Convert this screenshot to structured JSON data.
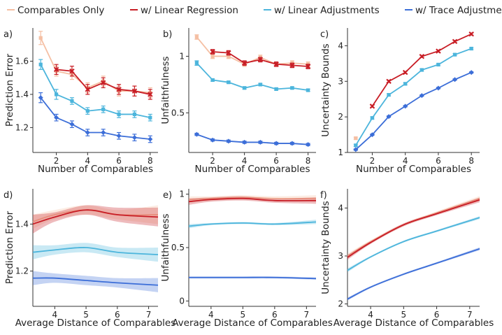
{
  "legend": {
    "items": [
      {
        "label": "Comparables Only",
        "color": "#f5bfa3"
      },
      {
        "label": "w/ Linear Regression",
        "color": "#c81d25"
      },
      {
        "label": "w/ Linear Adjustments",
        "color": "#4cb5dc"
      },
      {
        "label": "w/ Trace Adjustment",
        "color": "#3c6ed8"
      }
    ]
  },
  "chart_data": [
    {
      "panel": "a)",
      "type": "line",
      "xlabel": "Number of Comparables",
      "ylabel": "Prediction Error",
      "xlim": [
        0.5,
        8.5
      ],
      "ylim": [
        1.05,
        1.8
      ],
      "xticks": [
        2,
        4,
        6,
        8
      ],
      "yticks": [
        1.2,
        1.4,
        1.6
      ],
      "series": [
        {
          "name": "Comparables Only",
          "x": [
            1,
            2,
            3,
            4,
            5,
            6,
            7,
            8
          ],
          "y": [
            1.74,
            1.54,
            1.52,
            1.44,
            1.48,
            1.42,
            1.42,
            1.41
          ],
          "err": [
            0.04,
            0.03,
            0.03,
            0.03,
            0.03,
            0.03,
            0.03,
            0.03
          ],
          "marker": "square"
        },
        {
          "name": "w/ Linear Regression",
          "x": [
            2,
            3,
            4,
            5,
            6,
            7,
            8
          ],
          "y": [
            1.55,
            1.54,
            1.43,
            1.47,
            1.43,
            1.42,
            1.4
          ],
          "err": [
            0.03,
            0.03,
            0.03,
            0.03,
            0.03,
            0.03,
            0.03
          ],
          "marker": "x"
        },
        {
          "name": "w/ Linear Adjustments",
          "x": [
            1,
            2,
            3,
            4,
            5,
            6,
            7,
            8
          ],
          "y": [
            1.58,
            1.4,
            1.36,
            1.3,
            1.31,
            1.28,
            1.28,
            1.26
          ],
          "err": [
            0.03,
            0.03,
            0.02,
            0.02,
            0.02,
            0.02,
            0.02,
            0.02
          ],
          "marker": "square"
        },
        {
          "name": "w/ Trace Adjustment",
          "x": [
            1,
            2,
            3,
            4,
            5,
            6,
            7,
            8
          ],
          "y": [
            1.38,
            1.26,
            1.22,
            1.17,
            1.17,
            1.15,
            1.14,
            1.13
          ],
          "err": [
            0.03,
            0.02,
            0.02,
            0.02,
            0.02,
            0.02,
            0.02,
            0.02
          ],
          "marker": "diamond"
        }
      ]
    },
    {
      "panel": "b)",
      "type": "line",
      "xlabel": "Number of Comparables",
      "ylabel": "Unfaithfulness",
      "xlim": [
        0.5,
        8.5
      ],
      "ylim": [
        0.15,
        1.25
      ],
      "xticks": [
        2,
        4,
        6,
        8
      ],
      "yticks": [
        0.5,
        1.0
      ],
      "series": [
        {
          "name": "Comparables Only",
          "x": [
            1,
            2,
            3,
            4,
            5,
            6,
            7,
            8
          ],
          "y": [
            1.17,
            1.0,
            1.0,
            0.93,
            0.99,
            0.93,
            0.94,
            0.93
          ],
          "err": [
            0.02,
            0.02,
            0.02,
            0.02,
            0.02,
            0.02,
            0.02,
            0.02
          ],
          "marker": "square"
        },
        {
          "name": "w/ Linear Regression",
          "x": [
            2,
            3,
            4,
            5,
            6,
            7,
            8
          ],
          "y": [
            1.04,
            1.03,
            0.94,
            0.97,
            0.93,
            0.92,
            0.91
          ],
          "err": [
            0.02,
            0.02,
            0.02,
            0.02,
            0.02,
            0.02,
            0.02
          ],
          "marker": "x"
        },
        {
          "name": "w/ Linear Adjustments",
          "x": [
            1,
            2,
            3,
            4,
            5,
            6,
            7,
            8
          ],
          "y": [
            0.94,
            0.79,
            0.77,
            0.72,
            0.75,
            0.71,
            0.72,
            0.7
          ],
          "err": [
            0.02,
            0.01,
            0.01,
            0.01,
            0.01,
            0.01,
            0.01,
            0.01
          ],
          "marker": "square"
        },
        {
          "name": "w/ Trace Adjustment",
          "x": [
            1,
            2,
            3,
            4,
            5,
            6,
            7,
            8
          ],
          "y": [
            0.31,
            0.26,
            0.25,
            0.24,
            0.24,
            0.23,
            0.23,
            0.22
          ],
          "err": [
            0.01,
            0.01,
            0.01,
            0.01,
            0.01,
            0.01,
            0.01,
            0.01
          ],
          "marker": "diamond"
        }
      ]
    },
    {
      "panel": "c)",
      "type": "line",
      "xlabel": "Number of Comparables",
      "ylabel": "Uncertainty Bounds",
      "xlim": [
        0.5,
        8.5
      ],
      "ylim": [
        1.0,
        4.5
      ],
      "xticks": [
        2,
        4,
        6,
        8
      ],
      "yticks": [
        1,
        2,
        3,
        4
      ],
      "series": [
        {
          "name": "Comparables Only",
          "x": [
            1
          ],
          "y": [
            1.4
          ],
          "err": [
            0.03
          ],
          "marker": "square"
        },
        {
          "name": "w/ Linear Regression",
          "x": [
            2,
            3,
            4,
            5,
            6,
            7,
            8
          ],
          "y": [
            2.3,
            3.0,
            3.25,
            3.7,
            3.85,
            4.12,
            4.33
          ],
          "err": [
            0.03,
            0.03,
            0.03,
            0.03,
            0.03,
            0.03,
            0.03
          ],
          "marker": "x"
        },
        {
          "name": "w/ Linear Adjustments",
          "x": [
            1,
            2,
            3,
            4,
            5,
            6,
            7,
            8
          ],
          "y": [
            1.2,
            1.97,
            2.62,
            2.93,
            3.32,
            3.47,
            3.75,
            3.92
          ],
          "err": [
            0.03,
            0.03,
            0.03,
            0.03,
            0.03,
            0.03,
            0.03,
            0.03
          ],
          "marker": "square"
        },
        {
          "name": "w/ Trace Adjustment",
          "x": [
            1,
            2,
            3,
            4,
            5,
            6,
            7,
            8
          ],
          "y": [
            1.08,
            1.5,
            2.01,
            2.3,
            2.6,
            2.81,
            3.05,
            3.25
          ],
          "err": [
            0.02,
            0.02,
            0.02,
            0.02,
            0.02,
            0.02,
            0.02,
            0.02
          ],
          "marker": "diamond"
        }
      ]
    },
    {
      "panel": "d)",
      "type": "area",
      "xlabel": "Average Distance of Comparables",
      "ylabel": "Prediction Error",
      "xlim": [
        3.3,
        7.3
      ],
      "ylim": [
        1.05,
        1.55
      ],
      "xticks": [
        4,
        5,
        6,
        7
      ],
      "yticks": [
        1.2,
        1.4
      ],
      "series": [
        {
          "name": "Comparables Only",
          "x": [
            3.3,
            4.0,
            5.0,
            6.0,
            7.3
          ],
          "y": [
            1.41,
            1.44,
            1.46,
            1.44,
            1.44
          ],
          "band": [
            0.03,
            0.02,
            0.02,
            0.02,
            0.04
          ]
        },
        {
          "name": "w/ Linear Regression",
          "x": [
            3.3,
            4.0,
            5.0,
            6.0,
            7.3
          ],
          "y": [
            1.4,
            1.43,
            1.46,
            1.44,
            1.43
          ],
          "band": [
            0.04,
            0.02,
            0.02,
            0.03,
            0.04
          ]
        },
        {
          "name": "w/ Linear Adjustments",
          "x": [
            3.3,
            4.0,
            5.0,
            6.0,
            7.3
          ],
          "y": [
            1.28,
            1.29,
            1.3,
            1.28,
            1.27
          ],
          "band": [
            0.03,
            0.02,
            0.02,
            0.02,
            0.03
          ]
        },
        {
          "name": "w/ Trace Adjustment",
          "x": [
            3.3,
            4.0,
            5.0,
            6.0,
            7.3
          ],
          "y": [
            1.17,
            1.17,
            1.16,
            1.15,
            1.14
          ],
          "band": [
            0.03,
            0.02,
            0.02,
            0.02,
            0.03
          ]
        }
      ]
    },
    {
      "panel": "e)",
      "type": "area",
      "xlabel": "Average Distance of Comparables",
      "ylabel": "Unfaithfulness",
      "xlim": [
        3.3,
        7.3
      ],
      "ylim": [
        -0.05,
        1.05
      ],
      "xticks": [
        4,
        5,
        6,
        7
      ],
      "yticks": [
        0,
        0.5,
        1
      ],
      "series": [
        {
          "name": "Comparables Only",
          "x": [
            3.3,
            4.0,
            5.0,
            6.0,
            7.3
          ],
          "y": [
            0.95,
            0.96,
            0.97,
            0.96,
            0.96
          ],
          "band": [
            0.03,
            0.02,
            0.02,
            0.02,
            0.03
          ]
        },
        {
          "name": "w/ Linear Regression",
          "x": [
            3.3,
            4.0,
            5.0,
            6.0,
            7.3
          ],
          "y": [
            0.93,
            0.95,
            0.96,
            0.94,
            0.94
          ],
          "band": [
            0.03,
            0.02,
            0.02,
            0.02,
            0.03
          ]
        },
        {
          "name": "w/ Linear Adjustments",
          "x": [
            3.3,
            4.0,
            5.0,
            6.0,
            7.3
          ],
          "y": [
            0.7,
            0.72,
            0.73,
            0.72,
            0.74
          ],
          "band": [
            0.02,
            0.01,
            0.01,
            0.01,
            0.02
          ]
        },
        {
          "name": "w/ Trace Adjustment",
          "x": [
            3.3,
            4.0,
            5.0,
            6.0,
            7.3
          ],
          "y": [
            0.22,
            0.22,
            0.22,
            0.22,
            0.21
          ],
          "band": [
            0.01,
            0.01,
            0.01,
            0.01,
            0.01
          ]
        }
      ]
    },
    {
      "panel": "f)",
      "type": "area",
      "xlabel": "Average Distance of Comparables",
      "ylabel": "Uncertainty Bounds",
      "xlim": [
        3.3,
        7.3
      ],
      "ylim": [
        1.95,
        4.4
      ],
      "xticks": [
        4,
        5,
        6,
        7
      ],
      "yticks": [
        2,
        3,
        4
      ],
      "series": [
        {
          "name": "Comparables Only",
          "x": [
            3.3,
            4.0,
            5.0,
            6.0,
            7.3
          ],
          "y": [
            3.0,
            3.3,
            3.65,
            3.9,
            4.2
          ],
          "band": [
            0.05,
            0.03,
            0.03,
            0.03,
            0.05
          ]
        },
        {
          "name": "w/ Linear Regression",
          "x": [
            3.3,
            4.0,
            5.0,
            6.0,
            7.3
          ],
          "y": [
            2.97,
            3.28,
            3.65,
            3.88,
            4.17
          ],
          "band": [
            0.05,
            0.03,
            0.03,
            0.03,
            0.05
          ]
        },
        {
          "name": "w/ Linear Adjustments",
          "x": [
            3.3,
            4.0,
            5.0,
            6.0,
            7.3
          ],
          "y": [
            2.7,
            2.98,
            3.3,
            3.52,
            3.8
          ],
          "band": [
            0.04,
            0.02,
            0.02,
            0.02,
            0.03
          ]
        },
        {
          "name": "w/ Trace Adjustment",
          "x": [
            3.3,
            4.0,
            5.0,
            6.0,
            7.3
          ],
          "y": [
            2.1,
            2.35,
            2.62,
            2.85,
            3.15
          ],
          "band": [
            0.03,
            0.02,
            0.02,
            0.02,
            0.03
          ]
        }
      ]
    }
  ]
}
